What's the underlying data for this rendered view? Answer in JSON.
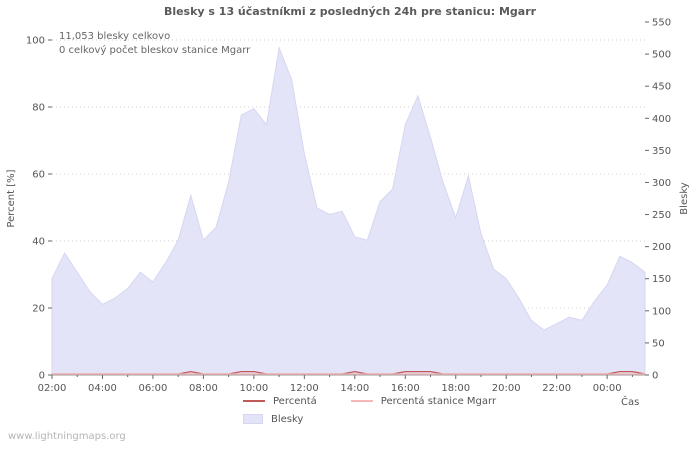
{
  "page": {
    "title": "Blesky s 13 účastníkmi z posledných 24h pre stanicu: Mgarr",
    "watermark": "www.lightningmaps.org"
  },
  "annotations": {
    "total": "11,053 blesky celkovo",
    "station_total": "0 celkový počet bleskov stanice Mgarr"
  },
  "legend": {
    "items": [
      {
        "label": "Percentá"
      },
      {
        "label": "Percentá stanice Mgarr"
      },
      {
        "label": "Blesky"
      }
    ]
  },
  "chart_data": {
    "type": "area",
    "title": "Blesky s 13 účastníkmi z posledných 24h pre stanicu: Mgarr",
    "grid": true,
    "legend_position": "bottom",
    "x_axis": {
      "label": "Čas",
      "tick_labels": [
        "02:00",
        "04:00",
        "06:00",
        "08:00",
        "10:00",
        "12:00",
        "14:00",
        "16:00",
        "18:00",
        "20:00",
        "22:00",
        "00:00"
      ],
      "tick_hours": [
        0,
        2,
        4,
        6,
        8,
        10,
        12,
        14,
        16,
        18,
        20,
        22
      ],
      "hours_span": 23.5,
      "step_hours": 0.5
    },
    "left_axis": {
      "label": "Percent  [%]",
      "ticks": [
        0,
        20,
        40,
        60,
        80,
        100
      ],
      "lim": [
        0,
        100
      ]
    },
    "right_axis": {
      "label": "Blesky",
      "ticks": [
        0,
        50,
        100,
        150,
        200,
        250,
        300,
        350,
        400,
        450,
        500,
        550
      ],
      "lim": [
        0,
        550
      ]
    },
    "series": [
      {
        "name": "Percentá",
        "type": "line",
        "axis": "left",
        "color": "#c05858",
        "values": [
          0,
          0,
          0,
          0,
          0,
          0,
          0,
          0,
          0,
          0,
          0,
          1,
          0,
          0,
          0,
          1,
          1,
          0,
          0,
          0,
          0,
          0,
          0,
          0,
          1,
          0,
          0,
          0,
          1,
          1,
          1,
          0,
          0,
          0,
          0,
          0,
          0,
          0,
          0,
          0,
          0,
          0,
          0,
          0,
          0,
          1,
          1,
          0
        ]
      },
      {
        "name": "Percentá stanice Mgarr",
        "type": "line",
        "axis": "left",
        "color": "#f4b8b8",
        "values": [
          0,
          0,
          0,
          0,
          0,
          0,
          0,
          0,
          0,
          0,
          0,
          0,
          0,
          0,
          0,
          0,
          0,
          0,
          0,
          0,
          0,
          0,
          0,
          0,
          0,
          0,
          0,
          0,
          0,
          0,
          0,
          0,
          0,
          0,
          0,
          0,
          0,
          0,
          0,
          0,
          0,
          0,
          0,
          0,
          0,
          0,
          0,
          0
        ]
      },
      {
        "name": "Blesky",
        "type": "area",
        "axis": "right",
        "color": "#e4e4f8",
        "stroke": "#d6d6f2",
        "values": [
          150,
          190,
          160,
          130,
          110,
          120,
          135,
          160,
          145,
          175,
          210,
          280,
          210,
          230,
          300,
          405,
          415,
          390,
          510,
          460,
          345,
          260,
          250,
          255,
          215,
          210,
          270,
          290,
          390,
          435,
          370,
          300,
          245,
          310,
          220,
          165,
          150,
          120,
          85,
          70,
          80,
          90,
          85,
          115,
          140,
          185,
          175,
          160
        ]
      }
    ]
  }
}
